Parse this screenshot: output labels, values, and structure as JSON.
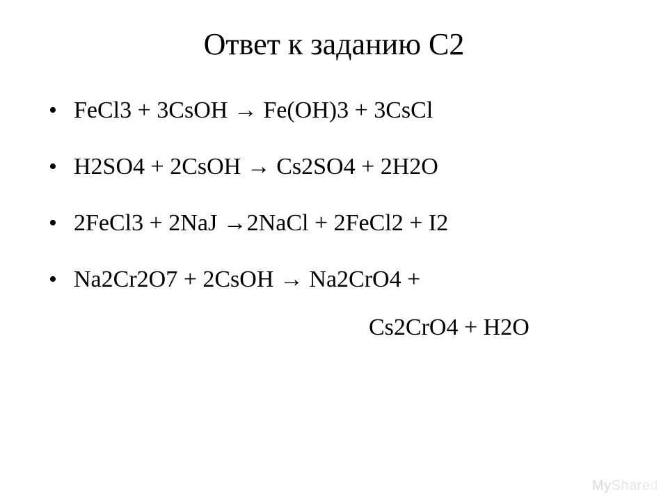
{
  "slide": {
    "background_color": "#ffffff",
    "text_color": "#000000",
    "font_family": "Georgia, Times New Roman, serif",
    "title": {
      "text": "Ответ к заданию С2",
      "fontsize": 44,
      "align": "center"
    },
    "bullets": {
      "fontsize": 34,
      "marker": "•",
      "items": [
        "FeCl3 + 3CsOH → Fe(OH)3 + 3CsCl",
        "H2SO4 + 2CsOH → Cs2SO4 + 2H2O",
        "2FeCl3 + 2NaJ →2NaCl + 2FeCl2 + I2",
        "Na2Cr2O7 + 2CsOH → Na2CrO4 +"
      ],
      "continuation": "Cs2CrO4 + H2O"
    },
    "watermark": {
      "parts": {
        "my": "My",
        "share": "Share",
        "d": "d"
      },
      "colors": {
        "my": "#d9d9d9",
        "share": "#e6e6e6",
        "d": "#f0f0f0"
      },
      "fontsize": 20
    }
  }
}
